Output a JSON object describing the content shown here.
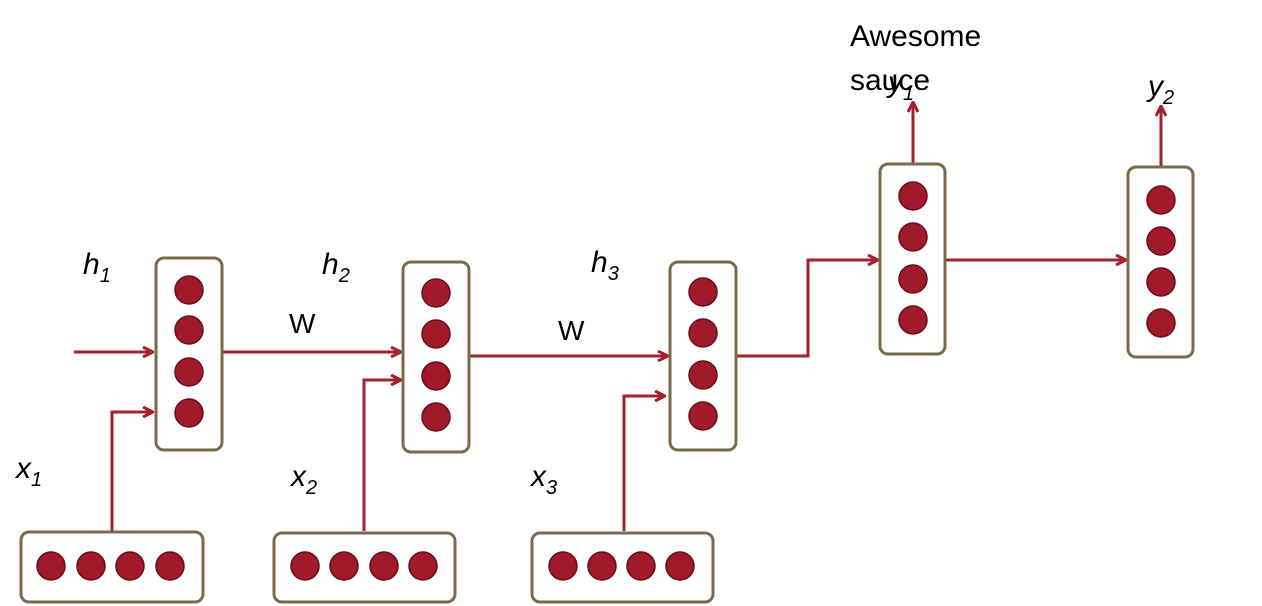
{
  "colors": {
    "neuron": "#a01a2a",
    "wire": "#a3222f",
    "box_border": "#7a6a4a"
  },
  "labels": {
    "h1": {
      "base": "h",
      "sub": "1"
    },
    "h2": {
      "base": "h",
      "sub": "2"
    },
    "h3": {
      "base": "h",
      "sub": "3"
    },
    "x1": {
      "base": "x",
      "sub": "1"
    },
    "x2": {
      "base": "x",
      "sub": "2"
    },
    "x3": {
      "base": "x",
      "sub": "3"
    },
    "y1": {
      "base": "y",
      "sub": "1"
    },
    "y2": {
      "base": "y",
      "sub": "2"
    },
    "w1": "W",
    "w2": "W"
  },
  "annotation": {
    "line1": "Awesome",
    "line2": "sauce"
  },
  "neurons_per_layer": 4
}
